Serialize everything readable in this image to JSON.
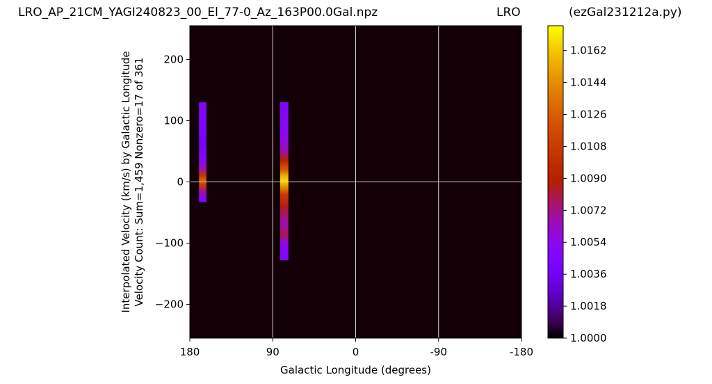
{
  "chart_data": {
    "type": "heatmap",
    "title_left": "LRO_AP_21CM_YAGI240823_00_El_77-0_Az_163P00.0Gal.npz",
    "title_center": "LRO",
    "title_right": "(ezGal231212a.py)",
    "xlabel": "Galactic Longitude (degrees)",
    "ylabel_line1": "Interpolated Velocity (km/s) by Galactic Longitude",
    "ylabel_line2": "Velocity Count: Sum=1,459 Nonzero=17 of 361",
    "xlim": [
      180,
      -180
    ],
    "ylim": [
      -255,
      255
    ],
    "x_ticks": [
      {
        "value": 180,
        "label": "180"
      },
      {
        "value": 90,
        "label": "90"
      },
      {
        "value": 0,
        "label": "0"
      },
      {
        "value": -90,
        "label": "-90"
      },
      {
        "value": -180,
        "label": "-180"
      }
    ],
    "y_ticks": [
      {
        "value": 200,
        "label": "200"
      },
      {
        "value": 100,
        "label": "100"
      },
      {
        "value": 0,
        "label": "0"
      },
      {
        "value": -100,
        "label": "−100"
      },
      {
        "value": -200,
        "label": "−200"
      }
    ],
    "grid": true,
    "colormap": "gnuplot",
    "colorbar": {
      "min": 1.0,
      "max": 1.0176,
      "ticks": [
        "1.0000",
        "1.0018",
        "1.0036",
        "1.0054",
        "1.0072",
        "1.0090",
        "1.0108",
        "1.0126",
        "1.0144",
        "1.0162"
      ]
    },
    "background_color": "#120006",
    "strips": [
      {
        "lon_from": 170,
        "lon_to": 162,
        "vel_min": -33,
        "vel_max": 130,
        "profile": [
          [
            130,
            1.0045
          ],
          [
            100,
            1.0045
          ],
          [
            60,
            1.0038
          ],
          [
            40,
            1.0048
          ],
          [
            22,
            1.0065
          ],
          [
            10,
            1.0105
          ],
          [
            3,
            1.0128
          ],
          [
            -5,
            1.011
          ],
          [
            -15,
            1.007
          ],
          [
            -25,
            1.005
          ],
          [
            -33,
            1.004
          ]
        ]
      },
      {
        "lon_from": 82,
        "lon_to": 73,
        "vel_min": -128,
        "vel_max": 130,
        "profile": [
          [
            130,
            1.0045
          ],
          [
            100,
            1.005
          ],
          [
            70,
            1.0055
          ],
          [
            50,
            1.0068
          ],
          [
            35,
            1.009
          ],
          [
            20,
            1.0125
          ],
          [
            10,
            1.0155
          ],
          [
            2,
            1.0168
          ],
          [
            -8,
            1.0145
          ],
          [
            -20,
            1.011
          ],
          [
            -40,
            1.0085
          ],
          [
            -55,
            1.0075
          ],
          [
            -70,
            1.0065
          ],
          [
            -85,
            1.008
          ],
          [
            -100,
            1.0055
          ],
          [
            -128,
            1.0045
          ]
        ]
      }
    ]
  }
}
